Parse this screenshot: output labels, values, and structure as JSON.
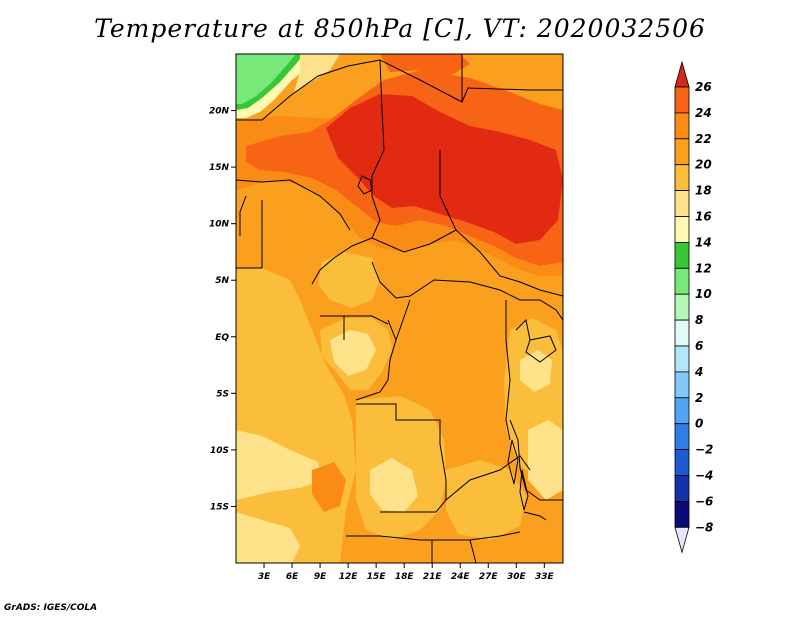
{
  "title": "Temperature at 850hPa [C], VT: 2020032506",
  "footer": "GrADS: IGES/COLA",
  "map": {
    "lon_range": [
      0,
      35
    ],
    "lat_range": [
      -20,
      25
    ],
    "x_ticks": [
      {
        "lon": 3,
        "label": "3E"
      },
      {
        "lon": 6,
        "label": "6E"
      },
      {
        "lon": 9,
        "label": "9E"
      },
      {
        "lon": 12,
        "label": "12E"
      },
      {
        "lon": 15,
        "label": "15E"
      },
      {
        "lon": 18,
        "label": "18E"
      },
      {
        "lon": 21,
        "label": "21E"
      },
      {
        "lon": 24,
        "label": "24E"
      },
      {
        "lon": 27,
        "label": "27E"
      },
      {
        "lon": 30,
        "label": "30E"
      },
      {
        "lon": 33,
        "label": "33E"
      }
    ],
    "y_ticks": [
      {
        "lat": 20,
        "label": "20N"
      },
      {
        "lat": 15,
        "label": "15N"
      },
      {
        "lat": 10,
        "label": "10N"
      },
      {
        "lat": 5,
        "label": "5N"
      },
      {
        "lat": 0,
        "label": "EQ"
      },
      {
        "lat": -5,
        "label": "5S"
      },
      {
        "lat": -10,
        "label": "10S"
      },
      {
        "lat": -15,
        "label": "15S"
      }
    ]
  },
  "colorbar": {
    "levels": [
      26,
      24,
      22,
      20,
      18,
      16,
      14,
      12,
      10,
      8,
      6,
      4,
      2,
      0,
      -2,
      -4,
      -6,
      -8
    ],
    "labels": [
      "26",
      "24",
      "22",
      "20",
      "18",
      "16",
      "14",
      "12",
      "10",
      "8",
      "6",
      "4",
      "2",
      "0",
      "−2",
      "−4",
      "−6",
      "−8"
    ],
    "colors": [
      "#f0461e",
      "#f86416",
      "#fa8c16",
      "#faa01e",
      "#fbbe3c",
      "#fde28a",
      "#fefab4",
      "#36c836",
      "#78e878",
      "#b4f8b4",
      "#e0fafa",
      "#b4e6fa",
      "#82c8fa",
      "#50a5f5",
      "#2d7fe6",
      "#1e5ad2",
      "#1432aa",
      "#0a0a78"
    ],
    "top_color": "#d22a1a",
    "bottom_color": "#e6e6fa"
  }
}
